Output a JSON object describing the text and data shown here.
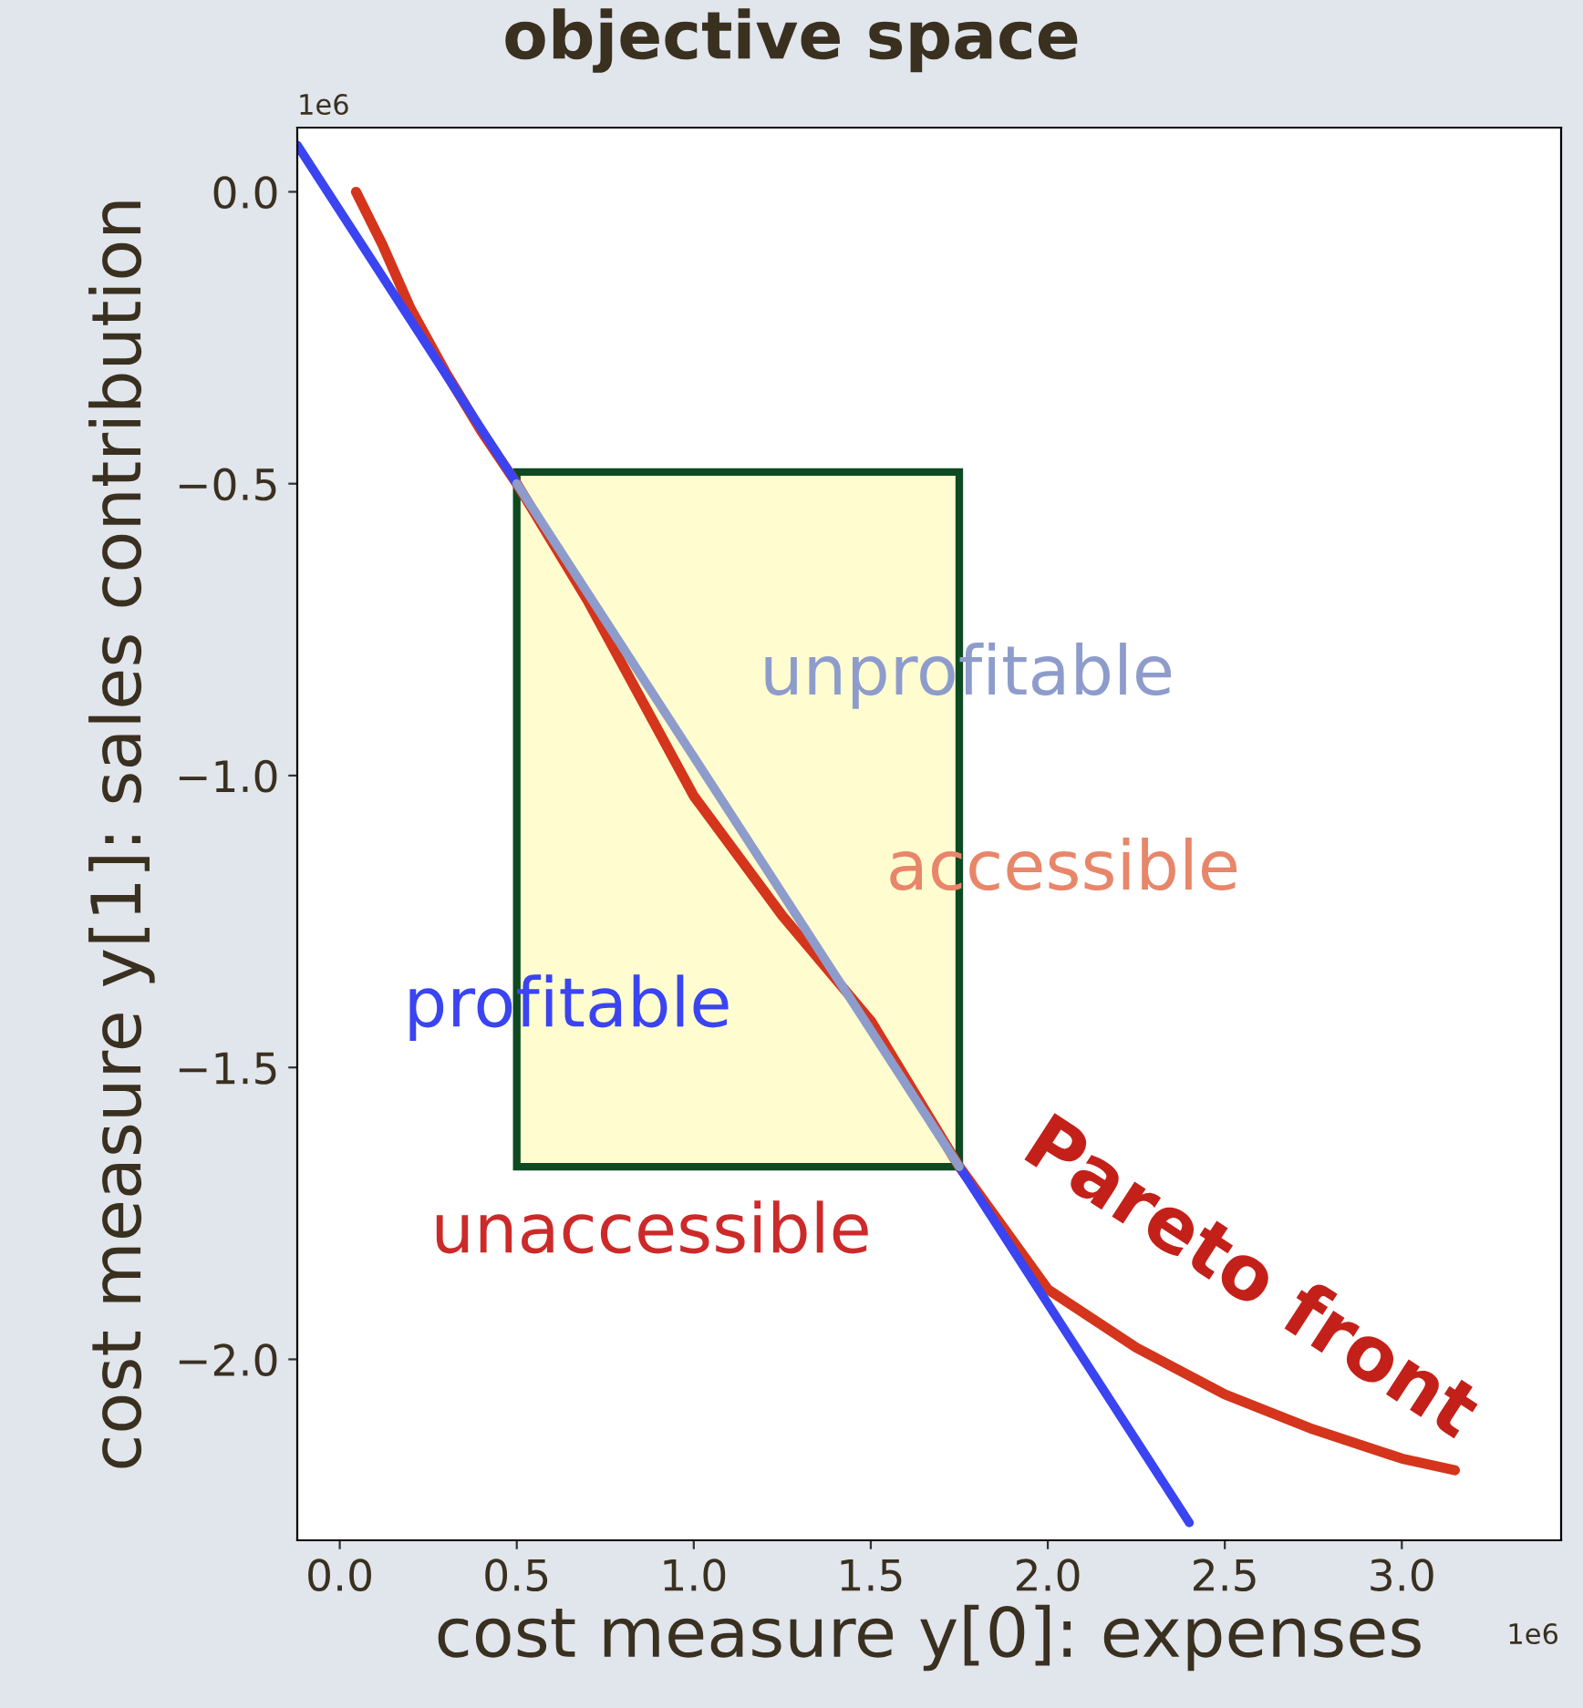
{
  "chart_data": {
    "type": "line",
    "title": "objective space",
    "xlabel": "cost measure y[0]: expenses",
    "ylabel": "cost measure y[1]: sales contribution",
    "xlim": [
      -0.12,
      3.45
    ],
    "ylim": [
      -2.31,
      0.11
    ],
    "xticks": [
      {
        "value": 0,
        "label": "0.0"
      },
      0.5,
      {
        "value": 1,
        "label": "1.0"
      },
      1.5,
      {
        "value": 2,
        "label": "2.0"
      },
      2.5,
      {
        "value": 3,
        "label": "3.0"
      }
    ],
    "yticks": [
      {
        "value": 0,
        "label": "0.0"
      },
      {
        "value": -0.5,
        "label": "−0.5"
      },
      {
        "value": -1,
        "label": "−1.0"
      },
      {
        "value": -1.5,
        "label": "−1.5"
      },
      {
        "value": -2,
        "label": "−2.0"
      }
    ],
    "series": [
      {
        "type": "area",
        "color": "#fffdd0",
        "x": [
          0.5,
          1.75,
          1.75,
          0.5,
          0.5
        ],
        "values": [
          -0.48,
          -0.48,
          -1.67,
          -1.67,
          -0.48
        ]
      },
      {
        "color": "#d4351c",
        "x": [
          0.046,
          0.12,
          0.2,
          0.3,
          0.4,
          0.5,
          0.7,
          1.0,
          1.25,
          1.5,
          1.75,
          2.0,
          2.25,
          2.5,
          2.75,
          3.0,
          3.15
        ],
        "values": [
          0,
          -0.09,
          -0.2,
          -0.31,
          -0.41,
          -0.5,
          -0.7,
          -1.035,
          -1.24,
          -1.42,
          -1.67,
          -1.88,
          -1.98,
          -2.06,
          -2.12,
          -2.17,
          -2.19
        ]
      },
      {
        "color": "#3a44f0",
        "x": [
          -0.12,
          0.5,
          1.1,
          1.75,
          2.4
        ],
        "values": [
          0.08,
          -0.5,
          null,
          -1.67,
          -2.28
        ]
      },
      {
        "color": "#8e9ccc",
        "x": [
          0.5,
          1.75
        ],
        "values": [
          -0.5,
          -1.67
        ]
      }
    ],
    "annotations": [
      "unprofitable",
      "accessible",
      "profitable",
      "unaccessible",
      "Pareto front",
      "1e6",
      "1e6"
    ],
    "grid": false,
    "legend": false
  }
}
